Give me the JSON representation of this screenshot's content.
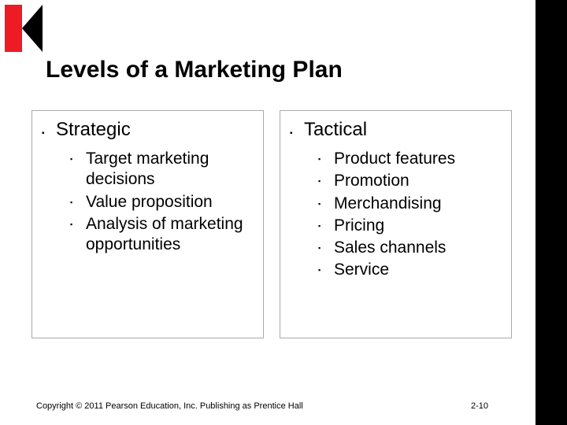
{
  "title": "Levels of a Marketing Plan",
  "colors": {
    "slide_bg": "#ffffff",
    "outer_bg": "#000000",
    "logo_red": "#ed1c24",
    "logo_black": "#000000",
    "text": "#000000",
    "box_border": "#aaaaaa"
  },
  "typography": {
    "title_fontsize": 30,
    "title_weight": "bold",
    "lvl1_fontsize": 24,
    "lvl2_fontsize": 21,
    "footer_fontsize": 11,
    "font_family": "Arial"
  },
  "columns": [
    {
      "heading": "Strategic",
      "items": [
        "Target marketing decisions",
        "Value proposition",
        "Analysis of marketing opportunities"
      ]
    },
    {
      "heading": "Tactical",
      "items": [
        "Product features",
        "Promotion",
        "Merchandising",
        "Pricing",
        "Sales channels",
        "Service"
      ]
    }
  ],
  "footer": {
    "copyright": "Copyright © 2011 Pearson Education, Inc.  Publishing as Prentice Hall",
    "page": "2-10"
  }
}
